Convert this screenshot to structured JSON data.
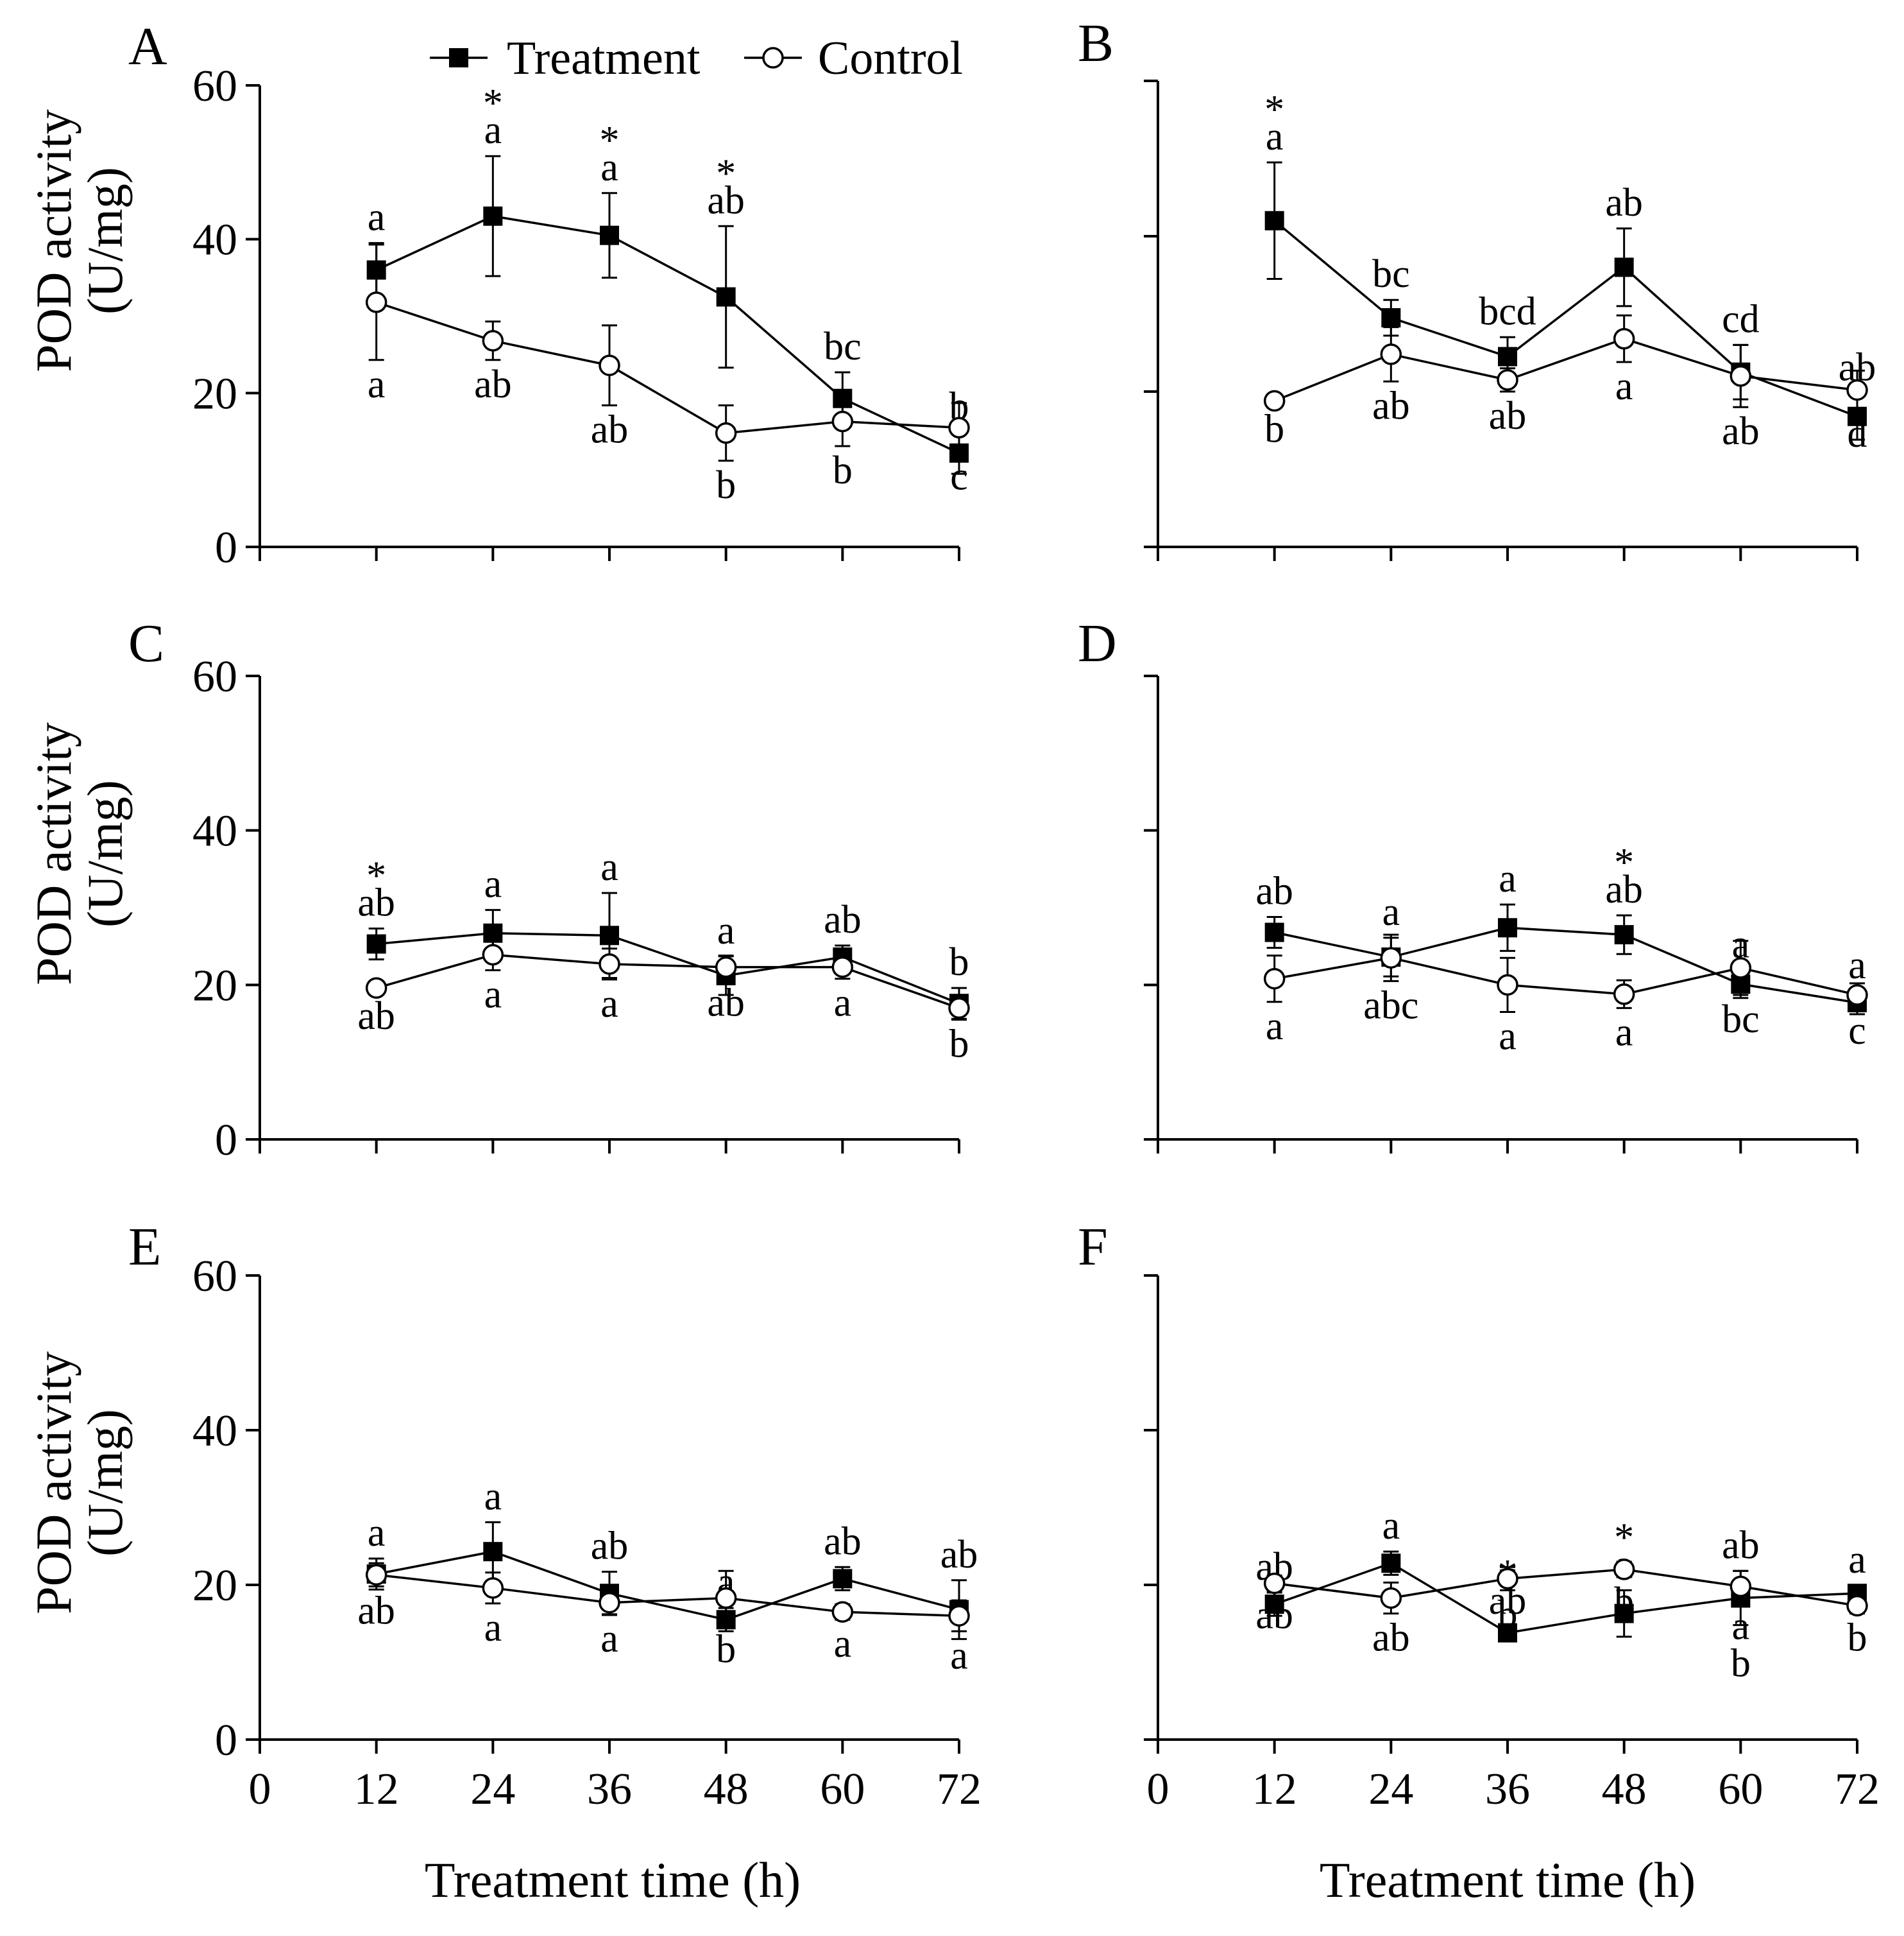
{
  "legend": {
    "treatment_label": "Treatment",
    "control_label": "Control"
  },
  "axes": {
    "ylabel_line1": "POD activity",
    "ylabel_line2": "(U/mg)",
    "xlabel": "Treatment time (h)",
    "x_ticks": [
      "0",
      "12",
      "24",
      "36",
      "48",
      "60",
      "72"
    ],
    "y_ticks": [
      "0",
      "20",
      "40",
      "60"
    ]
  },
  "chart_data": [
    {
      "panel": "A",
      "type": "line",
      "title": "A",
      "xlabel": "",
      "ylabel": "POD activity (U/mg)",
      "x": [
        12,
        24,
        36,
        48,
        60,
        72
      ],
      "xlim": [
        0,
        72
      ],
      "ylim": [
        0,
        60
      ],
      "series": [
        {
          "name": "Treatment",
          "marker": "filled-square",
          "values": [
            36,
            43,
            40.5,
            32.5,
            19.3,
            12.2
          ],
          "errors": [
            3.5,
            7.8,
            5.5,
            9.2,
            3.4,
            2.7
          ],
          "letters": [
            "a",
            "a",
            "a",
            "ab",
            "bc",
            "b"
          ],
          "stars": [
            "",
            "*",
            "*",
            "*",
            "",
            ""
          ]
        },
        {
          "name": "Control",
          "marker": "open-circle",
          "values": [
            31.8,
            26.8,
            23.6,
            14.8,
            16.3,
            15.5
          ],
          "errors": [
            7.5,
            2.5,
            5.2,
            3.6,
            3.2,
            3.2
          ],
          "letters": [
            "a",
            "ab",
            "ab",
            "b",
            "b",
            "c"
          ]
        }
      ]
    },
    {
      "panel": "B",
      "type": "line",
      "title": "B",
      "xlabel": "",
      "ylabel": "",
      "x": [
        12,
        24,
        36,
        48,
        60,
        72
      ],
      "xlim": [
        0,
        72
      ],
      "ylim": [
        0,
        60
      ],
      "series": [
        {
          "name": "Treatment",
          "marker": "filled-square",
          "values": [
            42,
            29.5,
            24.5,
            36,
            22.5,
            16.8
          ],
          "errors": [
            7.5,
            2.3,
            2.5,
            5.0,
            3.5,
            3.0
          ],
          "letters": [
            "a",
            "bc",
            "bcd",
            "ab",
            "cd",
            "ab"
          ],
          "stars": [
            "*",
            "",
            "",
            "",
            "",
            ""
          ]
        },
        {
          "name": "Control",
          "marker": "open-circle",
          "values": [
            18.8,
            24.8,
            21.5,
            26.8,
            22,
            20.2
          ],
          "errors": [
            0.5,
            3.5,
            1.5,
            3.0,
            4.0,
            2.5
          ],
          "letters": [
            "b",
            "ab",
            "ab",
            "a",
            "ab",
            "d"
          ]
        }
      ]
    },
    {
      "panel": "C",
      "type": "line",
      "title": "C",
      "xlabel": "",
      "ylabel": "POD activity (U/mg)",
      "x": [
        12,
        24,
        36,
        48,
        60,
        72
      ],
      "xlim": [
        0,
        72
      ],
      "ylim": [
        0,
        60
      ],
      "series": [
        {
          "name": "Treatment",
          "marker": "filled-square",
          "values": [
            25.3,
            26.7,
            26.4,
            21.2,
            23.6,
            17.6
          ],
          "errors": [
            2.0,
            3.0,
            5.5,
            2.5,
            1.5,
            2.0
          ],
          "letters": [
            "ab",
            "a",
            "a",
            "a",
            "ab",
            "b"
          ],
          "stars": [
            "*",
            "",
            "",
            "",
            "",
            ""
          ]
        },
        {
          "name": "Control",
          "marker": "open-circle",
          "values": [
            19.6,
            23.9,
            22.7,
            22.3,
            22.3,
            17
          ],
          "errors": [
            0.5,
            2.0,
            2.0,
            1.5,
            1.5,
            1.5
          ],
          "letters": [
            "ab",
            "a",
            "a",
            "ab",
            "a",
            "b"
          ]
        }
      ]
    },
    {
      "panel": "D",
      "type": "line",
      "title": "D",
      "xlabel": "",
      "ylabel": "",
      "x": [
        12,
        24,
        36,
        48,
        60,
        72
      ],
      "xlim": [
        0,
        72
      ],
      "ylim": [
        0,
        60
      ],
      "series": [
        {
          "name": "Treatment",
          "marker": "filled-square",
          "values": [
            26.8,
            23.6,
            27.4,
            26.5,
            20.1,
            17.7
          ],
          "errors": [
            2.0,
            2.5,
            3.0,
            2.5,
            1.8,
            1.5
          ],
          "letters": [
            "ab",
            "a",
            "a",
            "ab",
            "a",
            "a"
          ],
          "stars": [
            "",
            "",
            "",
            "*",
            "",
            ""
          ]
        },
        {
          "name": "Control",
          "marker": "open-circle",
          "values": [
            20.8,
            23.5,
            20.0,
            18.8,
            22.2,
            18.7
          ],
          "errors": [
            3.0,
            3.0,
            3.5,
            1.8,
            3.5,
            1.5
          ],
          "letters": [
            "a",
            "abc",
            "a",
            "a",
            "bc",
            "c"
          ]
        }
      ]
    },
    {
      "panel": "E",
      "type": "line",
      "title": "E",
      "xlabel": "Treatment time (h)",
      "ylabel": "POD activity (U/mg)",
      "x": [
        12,
        24,
        36,
        48,
        60,
        72
      ],
      "xlim": [
        0,
        72
      ],
      "ylim": [
        0,
        60
      ],
      "series": [
        {
          "name": "Treatment",
          "marker": "filled-square",
          "values": [
            21.4,
            24.3,
            18.9,
            15.5,
            20.8,
            16.8
          ],
          "errors": [
            2.0,
            3.8,
            2.8,
            1.5,
            1.5,
            3.8
          ],
          "letters": [
            "a",
            "a",
            "ab",
            "a",
            "ab",
            "ab"
          ],
          "stars": [
            "",
            "",
            "",
            "",
            "",
            ""
          ]
        },
        {
          "name": "Control",
          "marker": "open-circle",
          "values": [
            21.3,
            19.6,
            17.7,
            18.3,
            16.5,
            16
          ],
          "errors": [
            1.5,
            2.0,
            1.5,
            3.5,
            1.0,
            2.0
          ],
          "letters": [
            "ab",
            "a",
            "a",
            "b",
            "a",
            "a"
          ]
        }
      ]
    },
    {
      "panel": "F",
      "type": "line",
      "title": "F",
      "xlabel": "Treatment time (h)",
      "ylabel": "",
      "x": [
        12,
        24,
        36,
        48,
        60,
        72
      ],
      "xlim": [
        0,
        72
      ],
      "ylim": [
        0,
        60
      ],
      "series": [
        {
          "name": "Treatment",
          "marker": "filled-square",
          "values": [
            17.5,
            22.8,
            13.8,
            16.3,
            18.3,
            18.9
          ],
          "errors": [
            1.5,
            1.5,
            0.8,
            3.0,
            3.5,
            1.0
          ],
          "letters": [
            "ab",
            "a",
            "ab",
            "a",
            "ab",
            "a"
          ],
          "stars": [
            "",
            "",
            "*",
            "*",
            "",
            ""
          ]
        },
        {
          "name": "Control",
          "marker": "open-circle",
          "values": [
            20.2,
            18.3,
            20.8,
            22,
            19.8,
            17.3
          ],
          "errors": [
            1.0,
            2.0,
            1.5,
            1.0,
            2.0,
            1.0
          ],
          "letters": [
            "ab",
            "ab",
            "b",
            "b",
            "a",
            "b"
          ],
          "extra_below": [
            "",
            "",
            "",
            "",
            "b",
            ""
          ]
        }
      ]
    }
  ]
}
